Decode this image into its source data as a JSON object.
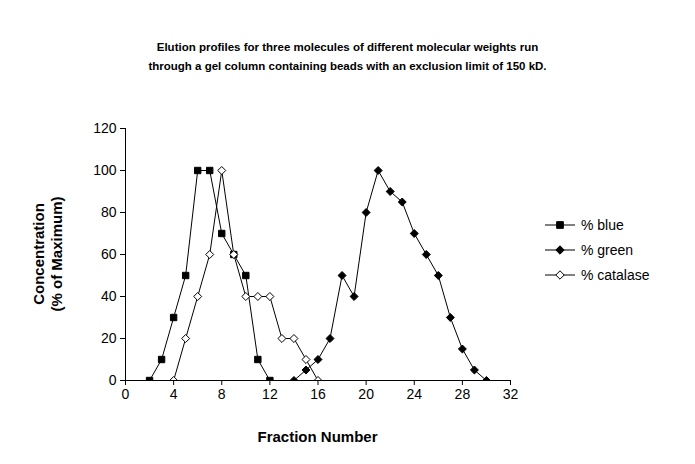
{
  "chart_data": {
    "type": "line",
    "title": "Elution profiles for three molecules of different molecular weights run\nthrough a gel column containing beads with an exclusion limit of 150 kD.",
    "x_label": "Fraction Number",
    "y_label": "Concentration\n(% of Maximum)",
    "xlim": [
      0,
      32
    ],
    "xticks": [
      0,
      4,
      8,
      12,
      16,
      20,
      24,
      28,
      32
    ],
    "ylim": [
      0,
      120
    ],
    "yticks": [
      0,
      20,
      40,
      60,
      80,
      100,
      120
    ],
    "grid": false,
    "legend": "right",
    "series": [
      {
        "name": "% blue",
        "color": "#000000",
        "marker": "square",
        "x": [
          2,
          3,
          4,
          5,
          6,
          7,
          8,
          9,
          10,
          11,
          12
        ],
        "values": [
          0,
          10,
          30,
          50,
          100,
          100,
          70,
          60,
          50,
          10,
          0
        ]
      },
      {
        "name": "% green",
        "color": "#000000",
        "marker": "diamond",
        "x": [
          14,
          15,
          16,
          17,
          18,
          19,
          20,
          21,
          22,
          23,
          24,
          25,
          26,
          27,
          28,
          29,
          30
        ],
        "values": [
          0,
          5,
          10,
          20,
          50,
          40,
          80,
          100,
          90,
          85,
          70,
          60,
          50,
          30,
          15,
          5,
          0
        ]
      },
      {
        "name": "% catalase",
        "color": "#000000",
        "marker": "open-diamond",
        "x": [
          4,
          5,
          6,
          7,
          8,
          9,
          10,
          11,
          12,
          13,
          14,
          15,
          16
        ],
        "values": [
          0,
          20,
          40,
          60,
          100,
          60,
          40,
          40,
          40,
          20,
          20,
          10,
          0
        ]
      }
    ]
  }
}
